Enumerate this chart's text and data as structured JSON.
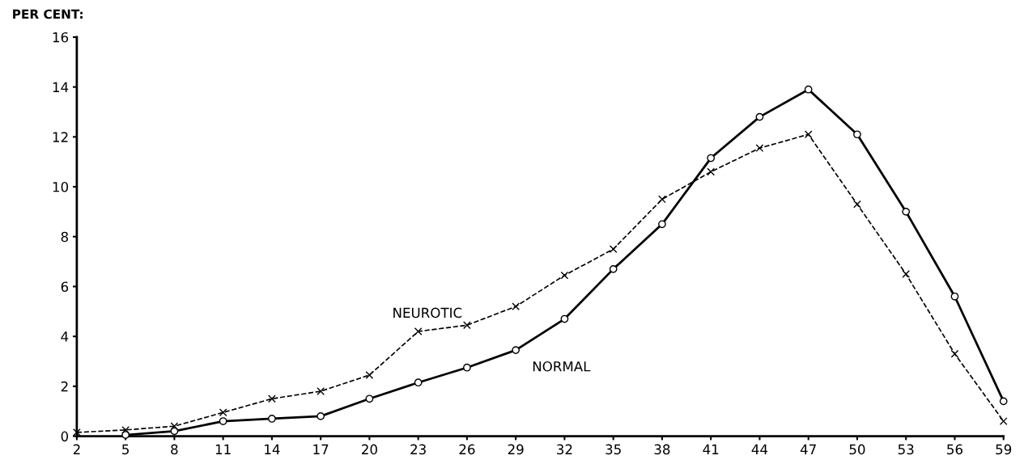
{
  "chart_data": {
    "type": "line",
    "ylabel": "PER CENT:",
    "x": [
      2,
      5,
      8,
      11,
      14,
      17,
      20,
      23,
      26,
      29,
      32,
      35,
      38,
      41,
      44,
      47,
      50,
      53,
      56,
      59
    ],
    "series": [
      {
        "name": "NEUROTIC",
        "color": "#000000",
        "marker": "cross",
        "line_style": "dashed",
        "values": [
          0.15,
          0.25,
          0.4,
          0.95,
          1.5,
          1.8,
          2.45,
          4.2,
          4.45,
          5.2,
          6.45,
          7.5,
          9.5,
          10.6,
          11.55,
          12.1,
          9.3,
          6.5,
          3.3,
          0.6
        ]
      },
      {
        "name": "NORMAL",
        "color": "#000000",
        "marker": "circle",
        "line_style": "solid",
        "values": [
          null,
          0.05,
          0.2,
          0.6,
          0.7,
          0.8,
          1.5,
          2.15,
          2.75,
          3.45,
          4.7,
          6.7,
          8.5,
          11.15,
          12.8,
          13.9,
          12.1,
          9.0,
          5.6,
          1.4
        ]
      }
    ],
    "xlim": [
      2,
      59
    ],
    "xticks": [
      2,
      5,
      8,
      11,
      14,
      17,
      20,
      23,
      26,
      29,
      32,
      35,
      38,
      41,
      44,
      47,
      50,
      53,
      56,
      59
    ],
    "ylim": [
      0,
      16
    ],
    "yticks": [
      0,
      2,
      4,
      6,
      8,
      10,
      12,
      14,
      16
    ],
    "grid": false,
    "legend": false
  }
}
